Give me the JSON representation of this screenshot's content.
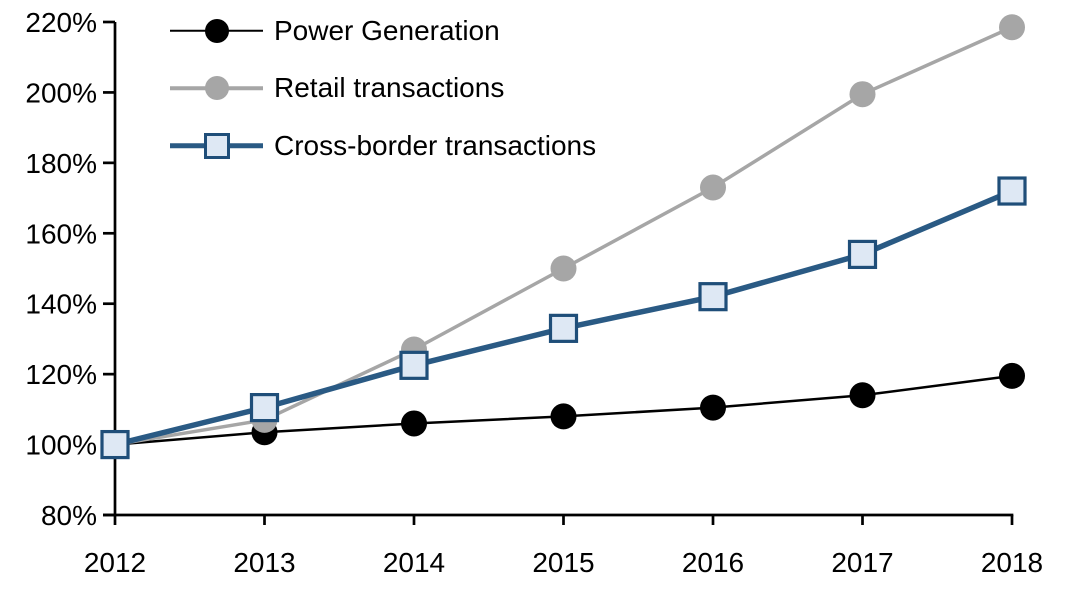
{
  "chart_data": {
    "type": "line",
    "categories": [
      "2012",
      "2013",
      "2014",
      "2015",
      "2016",
      "2017",
      "2018"
    ],
    "series": [
      {
        "name": "Power Generation",
        "color": "#000000",
        "line_width": 2.5,
        "marker": "circle",
        "marker_fill": "#000000",
        "values": [
          100,
          103.5,
          106,
          108,
          110.5,
          114,
          119.5
        ]
      },
      {
        "name": "Retail transactions",
        "color": "#A6A6A6",
        "line_width": 3.5,
        "marker": "circle",
        "marker_fill": "#A6A6A6",
        "values": [
          100,
          107,
          127,
          150,
          173,
          199.5,
          218.5
        ]
      },
      {
        "name": "Cross-border transactions",
        "color": "#2A5A84",
        "line_width": 5.5,
        "marker": "square",
        "marker_fill": "#DEE8F4",
        "marker_border": "#1F4E79",
        "values": [
          100,
          110.5,
          122.5,
          133,
          142,
          154,
          172
        ]
      }
    ],
    "ylim": [
      80,
      220
    ],
    "ytick_step": 20,
    "ytick_values": [
      220,
      200,
      180,
      160,
      140,
      120,
      100,
      80
    ],
    "ytick_labels": [
      "220%",
      "200%",
      "180%",
      "160%",
      "140%",
      "120%",
      "100%",
      "80%"
    ],
    "xtick_labels": [
      "2012",
      "2013",
      "2014",
      "2015",
      "2016",
      "2017",
      "2018"
    ],
    "legend_position": "top-left",
    "grid": false,
    "axis_color": "#000000",
    "background": "#FFFFFF"
  }
}
